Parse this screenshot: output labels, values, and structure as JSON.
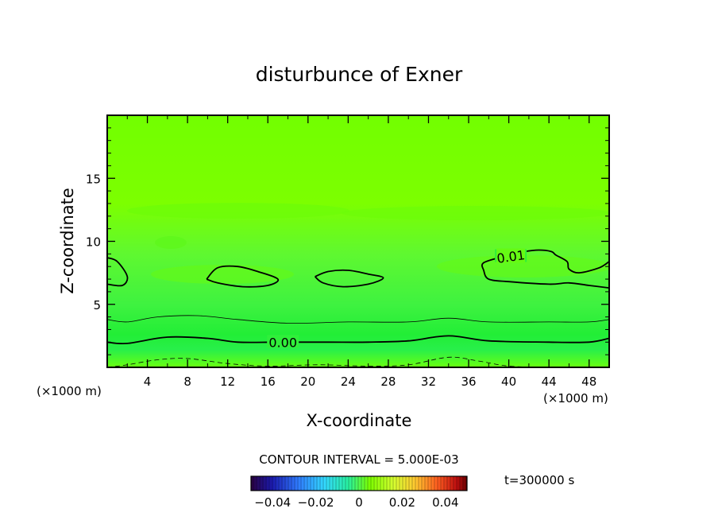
{
  "chart_data": {
    "type": "heatmap",
    "title": "disturbunce of Exner",
    "xlabel": "X-coordinate",
    "ylabel": "Z-coordinate",
    "x_unit": "(×1000 m)",
    "y_unit": "(×1000 m)",
    "xlim": [
      0,
      50
    ],
    "ylim": [
      0,
      20
    ],
    "x_ticks": [
      4,
      8,
      12,
      16,
      20,
      24,
      28,
      32,
      36,
      40,
      44,
      48
    ],
    "y_ticks": [
      5,
      10,
      15
    ],
    "contour_interval_label": "CONTOUR INTERVAL = 5.000E-03",
    "time_label": "t=300000 s",
    "colorbar": {
      "min": -0.05,
      "max": 0.05,
      "tick_values": [
        -0.04,
        -0.02,
        0,
        0.02,
        0.04
      ],
      "tick_labels": [
        "−0.04",
        "−0.02",
        "0",
        "0.02",
        "0.04"
      ]
    },
    "contour_labels": [
      {
        "text": "0.00",
        "x": 17.5,
        "z": 2.0
      },
      {
        "text": "0.01",
        "x": 40.2,
        "z": 8.8
      }
    ],
    "contours": [
      {
        "level": 0.0,
        "style": "solid-bold",
        "points": [
          [
            0,
            2.0
          ],
          [
            2,
            1.9
          ],
          [
            6,
            2.4
          ],
          [
            10,
            2.3
          ],
          [
            13,
            2.0
          ],
          [
            17,
            2.0
          ],
          [
            22,
            2.0
          ],
          [
            26,
            2.0
          ],
          [
            30,
            2.1
          ],
          [
            34,
            2.5
          ],
          [
            38,
            2.1
          ],
          [
            44,
            2.0
          ],
          [
            48,
            2.0
          ],
          [
            50,
            2.3
          ]
        ]
      },
      {
        "level": 0.005,
        "style": "solid-thin",
        "points": [
          [
            0,
            3.8
          ],
          [
            2,
            3.6
          ],
          [
            5,
            4.0
          ],
          [
            9,
            4.1
          ],
          [
            13,
            3.8
          ],
          [
            18,
            3.5
          ],
          [
            24,
            3.6
          ],
          [
            30,
            3.6
          ],
          [
            34,
            3.9
          ],
          [
            38,
            3.6
          ],
          [
            44,
            3.6
          ],
          [
            48,
            3.6
          ],
          [
            50,
            3.8
          ]
        ]
      },
      {
        "level": -0.005,
        "style": "dashed",
        "points": [
          [
            0,
            0.0
          ],
          [
            2,
            0.2
          ],
          [
            5,
            0.6
          ],
          [
            8,
            0.7
          ],
          [
            12,
            0.3
          ],
          [
            16,
            0.1
          ],
          [
            21,
            0.2
          ],
          [
            26,
            0.1
          ],
          [
            30,
            0.2
          ],
          [
            34,
            0.8
          ],
          [
            37,
            0.5
          ],
          [
            40,
            0.1
          ],
          [
            44,
            0.0
          ],
          [
            50,
            0.0
          ]
        ]
      },
      {
        "level": 0.01,
        "style": "solid-bold",
        "points": [
          [
            0,
            8.7
          ],
          [
            1,
            8.4
          ],
          [
            2,
            7.2
          ],
          [
            1.5,
            6.5
          ],
          [
            0,
            6.6
          ]
        ]
      },
      {
        "level": 0.01,
        "style": "solid-bold",
        "closed": true,
        "points": [
          [
            9.9,
            7.0
          ],
          [
            11,
            7.9
          ],
          [
            13,
            8.0
          ],
          [
            15,
            7.6
          ],
          [
            17,
            7.0
          ],
          [
            16,
            6.5
          ],
          [
            13.5,
            6.4
          ],
          [
            11,
            6.7
          ],
          [
            9.9,
            7.0
          ]
        ]
      },
      {
        "level": 0.01,
        "style": "solid-bold",
        "closed": true,
        "points": [
          [
            20.7,
            7.2
          ],
          [
            22,
            7.6
          ],
          [
            24,
            7.7
          ],
          [
            26,
            7.4
          ],
          [
            27.5,
            7.1
          ],
          [
            26,
            6.6
          ],
          [
            23.5,
            6.4
          ],
          [
            21.5,
            6.7
          ],
          [
            20.7,
            7.2
          ]
        ]
      },
      {
        "level": 0.01,
        "style": "solid-bold",
        "points": [
          [
            50,
            8.4
          ],
          [
            49,
            7.9
          ],
          [
            47,
            7.5
          ],
          [
            46,
            7.8
          ],
          [
            45.8,
            8.4
          ],
          [
            44.7,
            8.9
          ],
          [
            44.2,
            9.2
          ],
          [
            42.7,
            9.3
          ],
          [
            41,
            9.1
          ],
          [
            39.5,
            8.8
          ],
          [
            37.5,
            8.3
          ],
          [
            37.5,
            7.7
          ],
          [
            38,
            7.0
          ],
          [
            40,
            6.8
          ],
          [
            44,
            6.6
          ],
          [
            46,
            6.7
          ],
          [
            48,
            6.5
          ],
          [
            50,
            6.3
          ]
        ]
      }
    ]
  }
}
